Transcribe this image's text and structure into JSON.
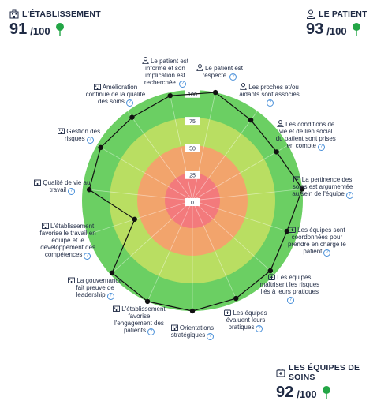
{
  "scores": {
    "etablissement": {
      "title": "L'ÉTABLISSEMENT",
      "value": "91",
      "max": "/100",
      "icon": "building-icon"
    },
    "patient": {
      "title": "LE PATIENT",
      "value": "93",
      "max": "/100",
      "icon": "person-icon"
    },
    "equipes": {
      "title": "LES ÉQUIPES DE SOINS",
      "value": "92",
      "max": "/100",
      "icon": "medical-kit-icon"
    }
  },
  "colors": {
    "ring_outer": "#6bcf63",
    "ring_second": "#b9de62",
    "ring_third": "#f2a46c",
    "ring_inner": "#f37a7c",
    "line": "#111111",
    "pin": "#23a646"
  },
  "chart_data": {
    "type": "radar",
    "rmax": 100,
    "ticks": [
      "100",
      "75",
      "50",
      "25",
      "0"
    ],
    "axes": [
      {
        "label": "Le patient est respecté.",
        "icon": "person-icon",
        "value": 100
      },
      {
        "label": "Les proches et/ou aidants sont associés",
        "icon": "person-icon",
        "value": 90
      },
      {
        "label": "Les conditions de vie et de lien social du patient sont prises en compte",
        "icon": "person-icon",
        "value": 88
      },
      {
        "label": "La pertinence des soins est argumentée au sein de l'équipe",
        "icon": "medical-kit-icon",
        "value": 100
      },
      {
        "label": "Les équipes sont coordonnées pour prendre en charge le patient",
        "icon": "medical-kit-icon",
        "value": 90
      },
      {
        "label": "Les équipes maîtrisent les risques liés à leurs pratiques",
        "icon": "medical-kit-icon",
        "value": 95
      },
      {
        "label": "Les équipes évaluent leurs pratiques",
        "icon": "medical-kit-icon",
        "value": 97
      },
      {
        "label": "Orientations stratégiques",
        "icon": "building-icon",
        "value": 100
      },
      {
        "label": "L'établissement favorise l'engagement des patients",
        "icon": "building-icon",
        "value": 100
      },
      {
        "label": "La gouvernance fait preuve de leadership",
        "icon": "building-icon",
        "value": 98
      },
      {
        "label": "L'établissement favorise le travail en équipe et le développement des compétences",
        "icon": "building-icon",
        "value": 55
      },
      {
        "label": "Qualité de vie au travail",
        "icon": "building-icon",
        "value": 94
      },
      {
        "label": "Gestion des risques",
        "icon": "building-icon",
        "value": 96
      },
      {
        "label": "Amélioration continue de la qualité des soins",
        "icon": "building-icon",
        "value": 93
      },
      {
        "label": "Le patient est informé et son implication est recherchée.",
        "icon": "person-icon",
        "value": 97
      }
    ]
  }
}
